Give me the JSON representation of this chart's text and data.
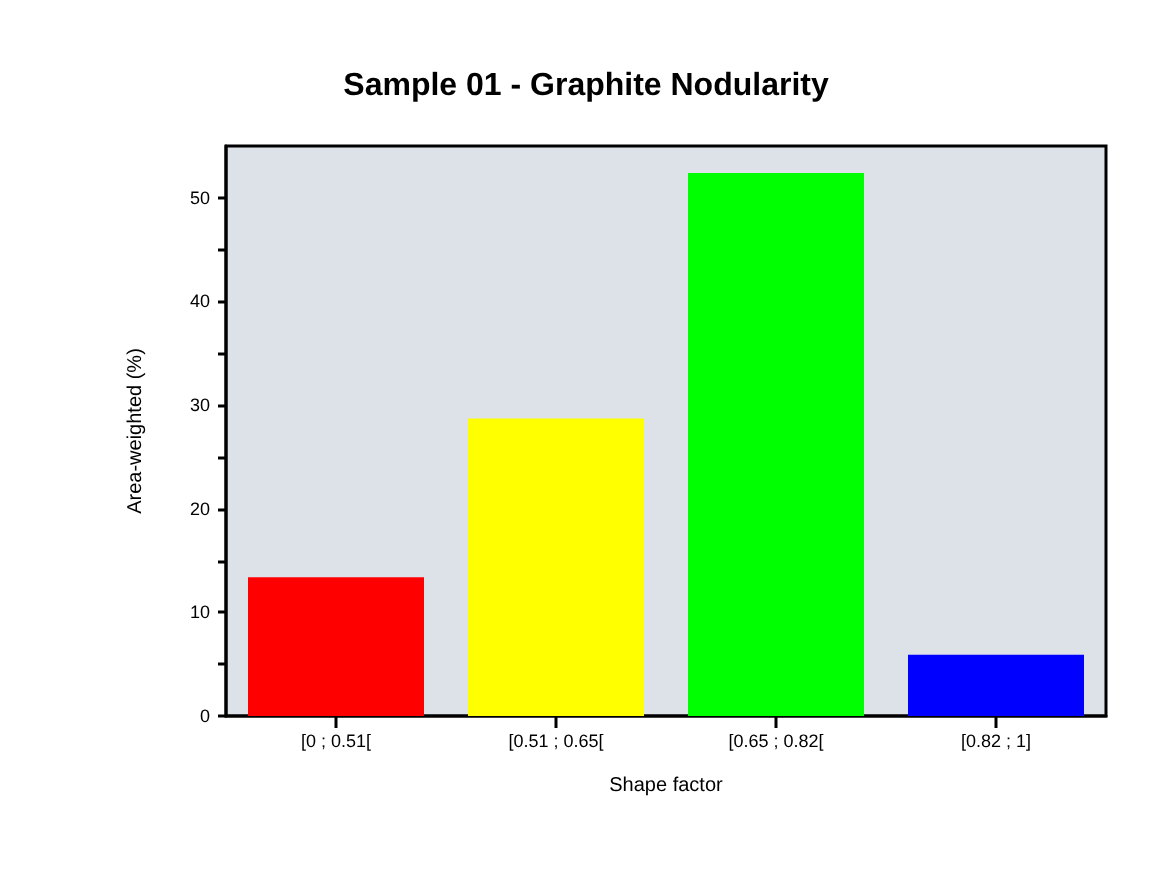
{
  "chart_data": {
    "type": "bar",
    "title": "Sample 01 - Graphite Nodularity",
    "xlabel": "Shape factor",
    "ylabel": "Area-weighted (%)",
    "categories": [
      "[0 ; 0.51[",
      "[0.51 ; 0.65[",
      "[0.65 ; 0.82[",
      "[0.82 ; 1]"
    ],
    "values": [
      13.4,
      28.7,
      52.4,
      5.9
    ],
    "colors": [
      "#ff0000",
      "#ffff00",
      "#00ff00",
      "#0000ff"
    ],
    "ylim": [
      0,
      55
    ],
    "yticks": [
      0,
      {
        "value": 5,
        "label": null
      },
      10,
      {
        "value": 15,
        "label": null
      },
      20,
      {
        "value": 25,
        "label": null
      },
      30,
      {
        "value": 35,
        "label": null
      },
      40,
      {
        "value": 45,
        "label": null
      },
      50
    ],
    "grid": false
  }
}
